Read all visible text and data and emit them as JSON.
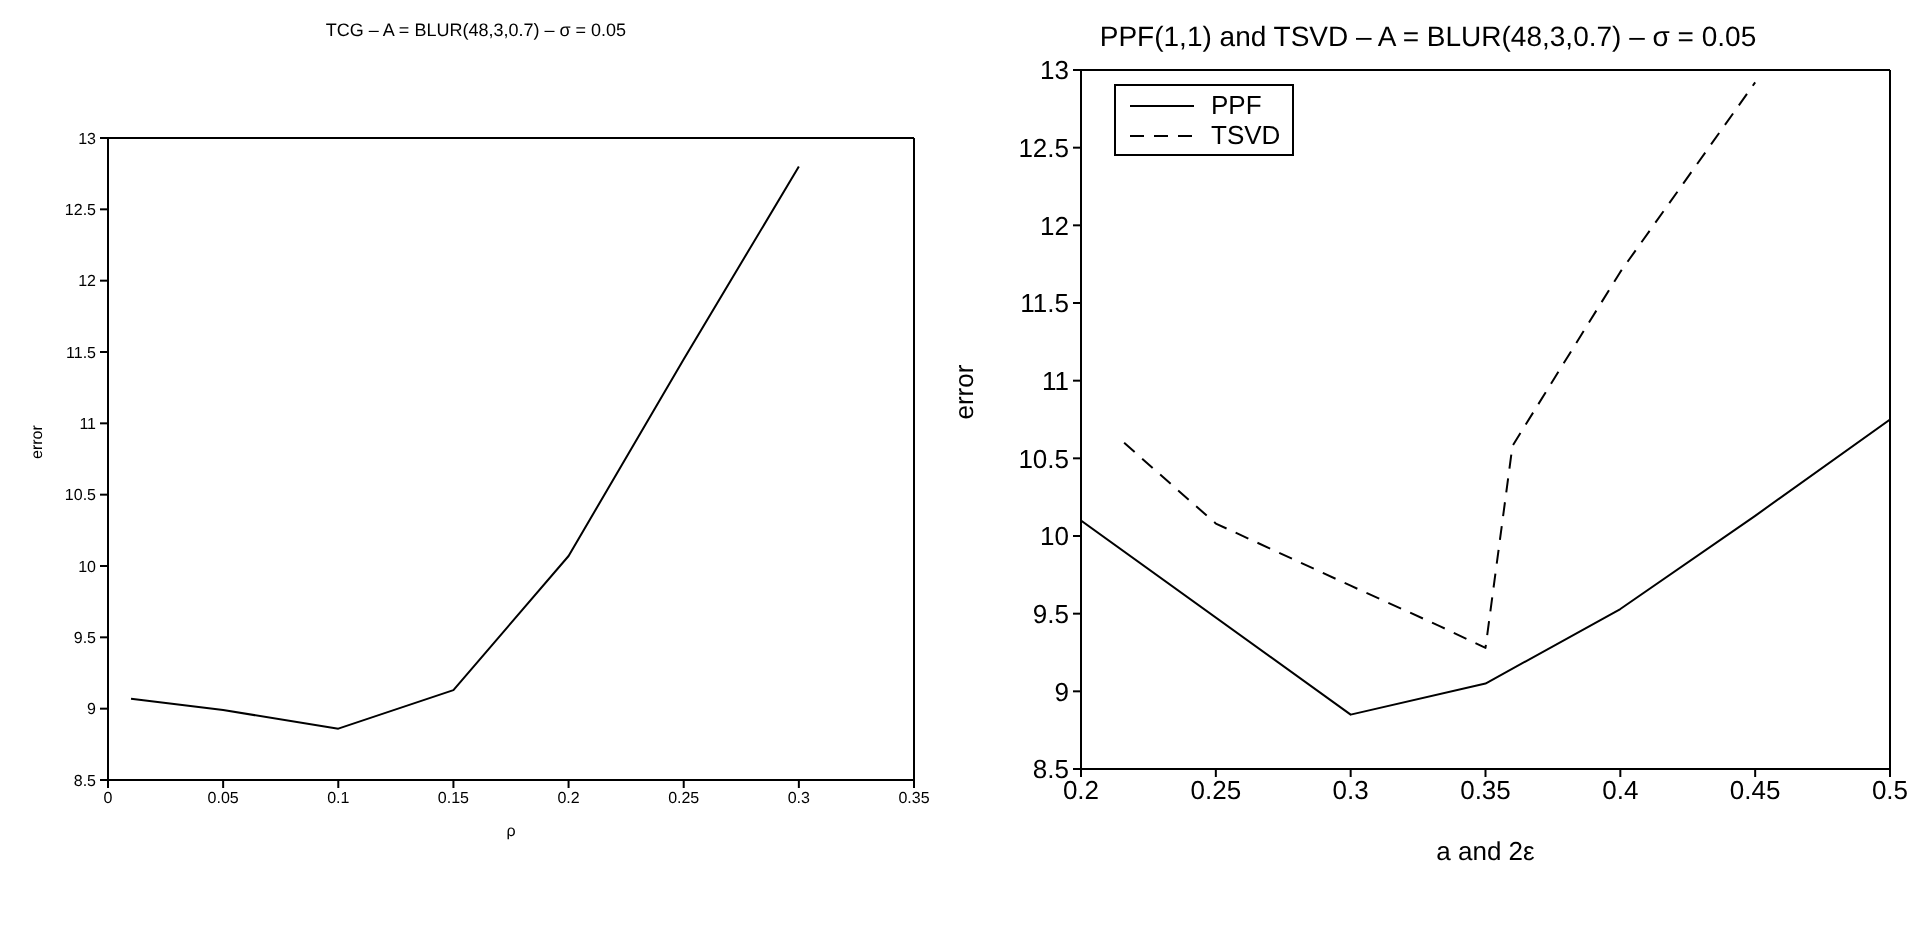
{
  "chart_data": [
    {
      "type": "line",
      "title": "TCG – A = BLUR(48,3,0.7) – σ = 0.05",
      "xlabel": "ρ",
      "ylabel": "error",
      "xlim": [
        0,
        0.35
      ],
      "xticks": [
        0,
        0.05,
        0.1,
        0.15,
        0.2,
        0.25,
        0.3,
        0.35
      ],
      "ylim": [
        8.5,
        13
      ],
      "yticks": [
        8.5,
        9,
        9.5,
        10,
        10.5,
        11,
        11.5,
        12,
        12.5,
        13
      ],
      "legend": false,
      "marker": "none",
      "series": [
        {
          "color": "#000000",
          "line_style": "solid",
          "x": [
            0.01,
            0.05,
            0.1,
            0.15,
            0.2,
            0.25,
            0.3
          ],
          "values": [
            9.07,
            8.99,
            8.86,
            9.13,
            10.07,
            11.45,
            12.8
          ]
        }
      ]
    },
    {
      "type": "line",
      "title": "PPF(1,1) and TSVD – A = BLUR(48,3,0.7) – σ = 0.05",
      "xlabel": "a and 2ε",
      "ylabel": "error",
      "xlim": [
        0.2,
        0.5
      ],
      "xticks": [
        0.2,
        0.25,
        0.3,
        0.35,
        0.4,
        0.45,
        0.5
      ],
      "ylim": [
        8.5,
        13
      ],
      "yticks": [
        8.5,
        9,
        9.5,
        10,
        10.5,
        11,
        11.5,
        12,
        12.5,
        13
      ],
      "legend": "top left",
      "marker": "none",
      "series": [
        {
          "name": "PPF",
          "color": "#000000",
          "line_style": "solid",
          "x": [
            0.2,
            0.3,
            0.35,
            0.4,
            0.45,
            0.5
          ],
          "values": [
            10.1,
            8.85,
            9.05,
            9.53,
            10.13,
            10.75
          ]
        },
        {
          "name": "TSVD",
          "color": "#000000",
          "line_style": "dashed",
          "x": [
            0.216,
            0.25,
            0.3,
            0.333,
            0.35,
            0.36,
            0.4,
            0.45
          ],
          "values": [
            10.6,
            10.08,
            9.68,
            9.42,
            9.28,
            10.58,
            11.7,
            12.92
          ]
        }
      ]
    }
  ]
}
